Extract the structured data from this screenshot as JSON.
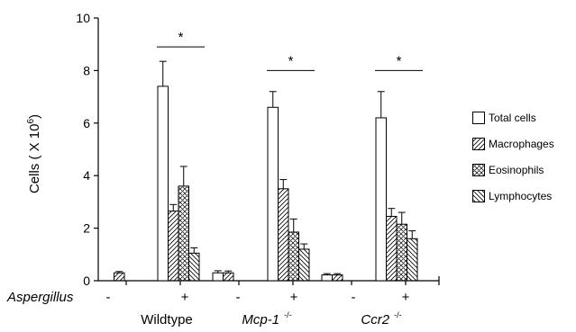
{
  "chart_data": {
    "type": "bar",
    "ylabel": "Cells ( X 10",
    "ylabel_sup": "6",
    "ylabel_end": ")",
    "ylim": [
      0,
      10
    ],
    "yticks": [
      0,
      2,
      4,
      6,
      8,
      10
    ],
    "treatment_label": "Aspergillus",
    "conditions": [
      "-",
      "+",
      "-",
      "+",
      "-",
      "+"
    ],
    "groups": [
      {
        "label": "Wildtype",
        "italic": false,
        "sup": ""
      },
      {
        "label": "Mcp-1",
        "italic": true,
        "sup": "-/-"
      },
      {
        "label": "Ccr2",
        "italic": true,
        "sup": "-/-"
      }
    ],
    "series": [
      {
        "name": "Total cells",
        "pattern": "none",
        "values": [
          0.0,
          7.4,
          0.3,
          6.6,
          0.22,
          6.2
        ],
        "errors": [
          0.0,
          0.95,
          0.08,
          0.6,
          0.05,
          1.0
        ]
      },
      {
        "name": "Macrophages",
        "pattern": "forward-hatch",
        "values": [
          0.3,
          2.65,
          0.3,
          3.5,
          0.22,
          2.45
        ],
        "errors": [
          0.05,
          0.25,
          0.07,
          0.35,
          0.05,
          0.3
        ]
      },
      {
        "name": "Eosinophils",
        "pattern": "crosshatch",
        "values": [
          0.0,
          3.6,
          0.0,
          1.85,
          0.0,
          2.15
        ],
        "errors": [
          0.0,
          0.75,
          0.0,
          0.5,
          0.0,
          0.45
        ]
      },
      {
        "name": "Lymphocytes",
        "pattern": "back-hatch",
        "values": [
          0.0,
          1.05,
          0.0,
          1.2,
          0.0,
          1.6
        ],
        "errors": [
          0.0,
          0.2,
          0.0,
          0.2,
          0.0,
          0.3
        ]
      }
    ],
    "significance": [
      {
        "cluster": 1,
        "label": "*",
        "level": 8.9
      },
      {
        "cluster": 3,
        "label": "*",
        "level": 8.0
      },
      {
        "cluster": 5,
        "label": "*",
        "level": 8.0
      }
    ],
    "legend_position": "right",
    "grid": false
  }
}
